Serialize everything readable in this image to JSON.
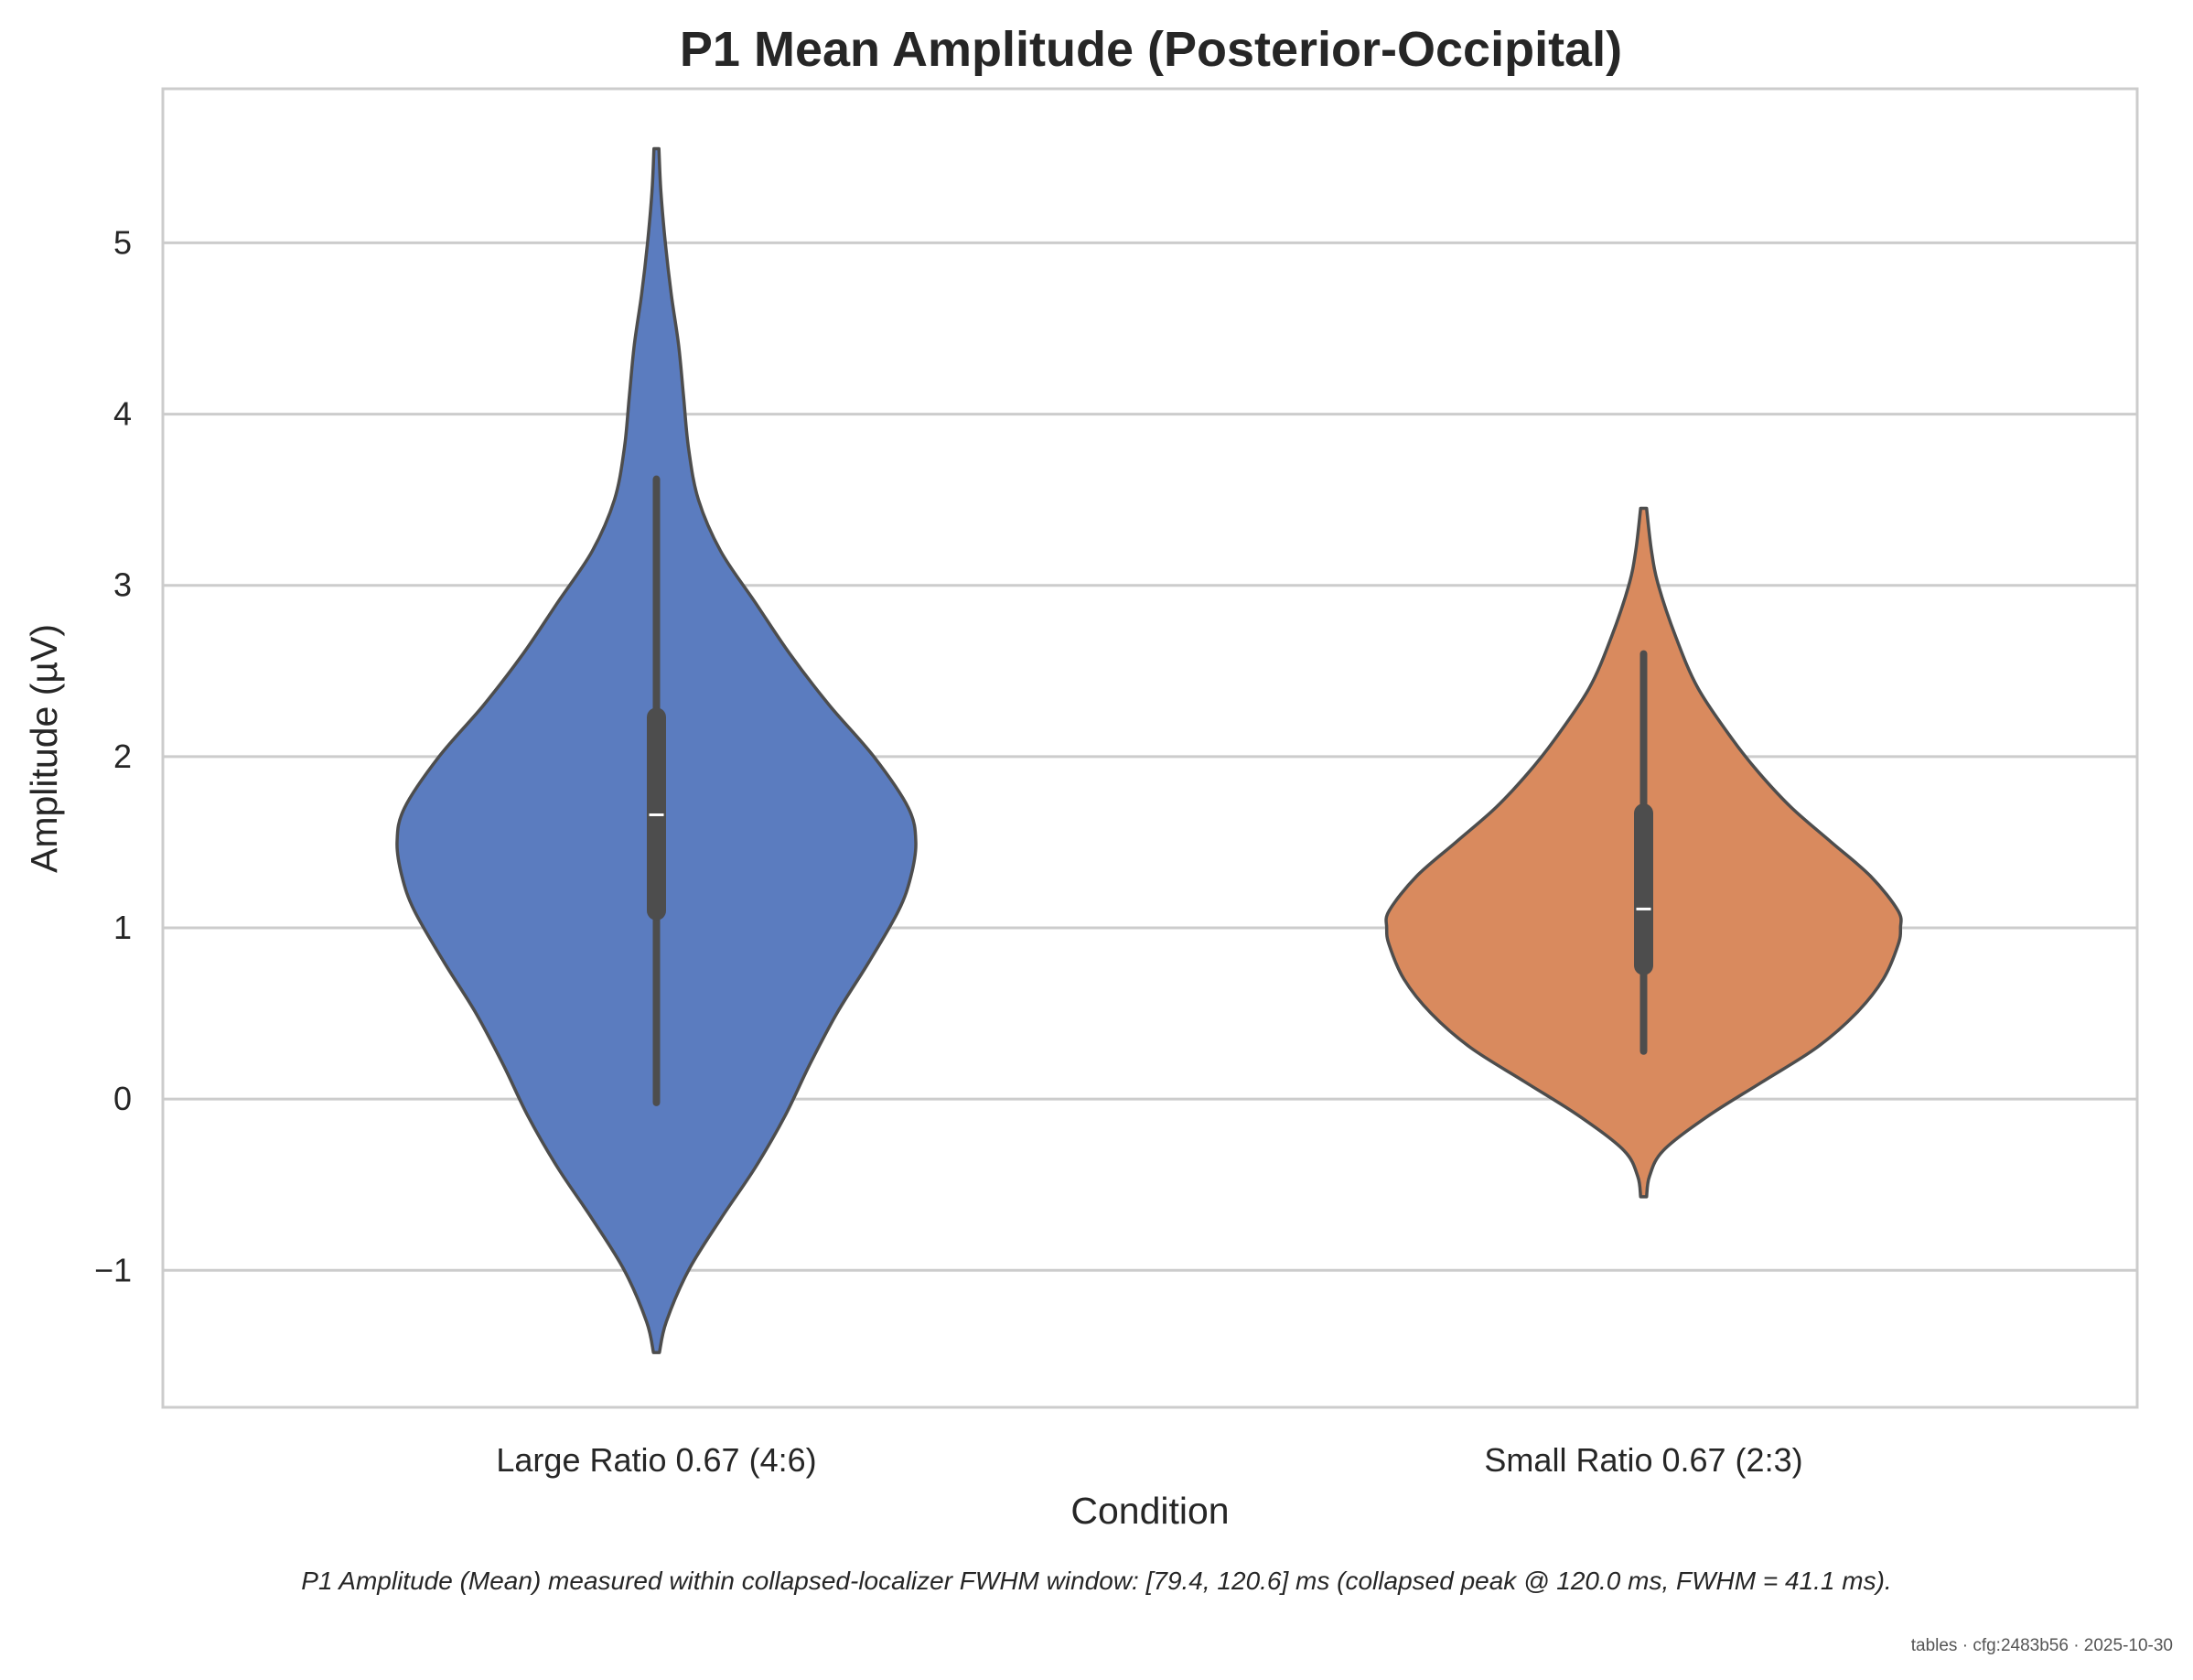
{
  "chart_data": {
    "type": "violin",
    "title": "P1 Mean Amplitude (Posterior-Occipital)",
    "xlabel": "Condition",
    "ylabel": "Amplitude (µV)",
    "ylim": [
      -1.8,
      5.9
    ],
    "yticks": [
      -1,
      0,
      1,
      2,
      3,
      4,
      5
    ],
    "ytick_labels": [
      "−1",
      "0",
      "1",
      "2",
      "3",
      "4",
      "5"
    ],
    "grid": "horizontal",
    "categories": [
      "Large Ratio 0.67 (4:6)",
      "Small Ratio 0.67 (2:3)"
    ],
    "series": [
      {
        "category": "Large Ratio 0.67 (4:6)",
        "color": "#5b7cbf",
        "range": [
          -1.48,
          5.55
        ],
        "whisker": [
          -0.02,
          3.62
        ],
        "q1": 1.1,
        "median": 1.66,
        "q3": 2.23,
        "density": [
          [
            -1.48,
            0.006
          ],
          [
            -1.3,
            0.02
          ],
          [
            -1.0,
            0.065
          ],
          [
            -0.7,
            0.13
          ],
          [
            -0.4,
            0.2
          ],
          [
            -0.1,
            0.26
          ],
          [
            0.2,
            0.31
          ],
          [
            0.5,
            0.365
          ],
          [
            0.8,
            0.43
          ],
          [
            1.1,
            0.49
          ],
          [
            1.3,
            0.515
          ],
          [
            1.5,
            0.525
          ],
          [
            1.7,
            0.51
          ],
          [
            2.0,
            0.44
          ],
          [
            2.3,
            0.35
          ],
          [
            2.6,
            0.27
          ],
          [
            2.9,
            0.2
          ],
          [
            3.2,
            0.13
          ],
          [
            3.5,
            0.085
          ],
          [
            3.8,
            0.065
          ],
          [
            4.1,
            0.055
          ],
          [
            4.4,
            0.045
          ],
          [
            4.7,
            0.03
          ],
          [
            5.0,
            0.018
          ],
          [
            5.3,
            0.009
          ],
          [
            5.55,
            0.005
          ]
        ]
      },
      {
        "category": "Small Ratio 0.67 (2:3)",
        "color": "#d98a5e",
        "range": [
          -0.57,
          3.45
        ],
        "whisker": [
          0.28,
          2.6
        ],
        "q1": 0.78,
        "median": 1.11,
        "q3": 1.67,
        "density": [
          [
            -0.57,
            0.006
          ],
          [
            -0.45,
            0.012
          ],
          [
            -0.3,
            0.04
          ],
          [
            -0.1,
            0.13
          ],
          [
            0.1,
            0.24
          ],
          [
            0.3,
            0.35
          ],
          [
            0.5,
            0.43
          ],
          [
            0.7,
            0.485
          ],
          [
            0.9,
            0.515
          ],
          [
            1.0,
            0.52
          ],
          [
            1.1,
            0.515
          ],
          [
            1.3,
            0.46
          ],
          [
            1.5,
            0.38
          ],
          [
            1.7,
            0.3
          ],
          [
            1.9,
            0.235
          ],
          [
            2.1,
            0.18
          ],
          [
            2.4,
            0.11
          ],
          [
            2.7,
            0.065
          ],
          [
            3.0,
            0.03
          ],
          [
            3.2,
            0.016
          ],
          [
            3.45,
            0.006
          ]
        ]
      }
    ]
  },
  "caption": "P1 Amplitude (Mean) measured within collapsed-localizer FWHM window: [79.4, 120.6] ms (collapsed peak @ 120.0 ms, FWHM = 41.1 ms).",
  "footer": "tables · cfg:2483b56 · 2025-10-30"
}
